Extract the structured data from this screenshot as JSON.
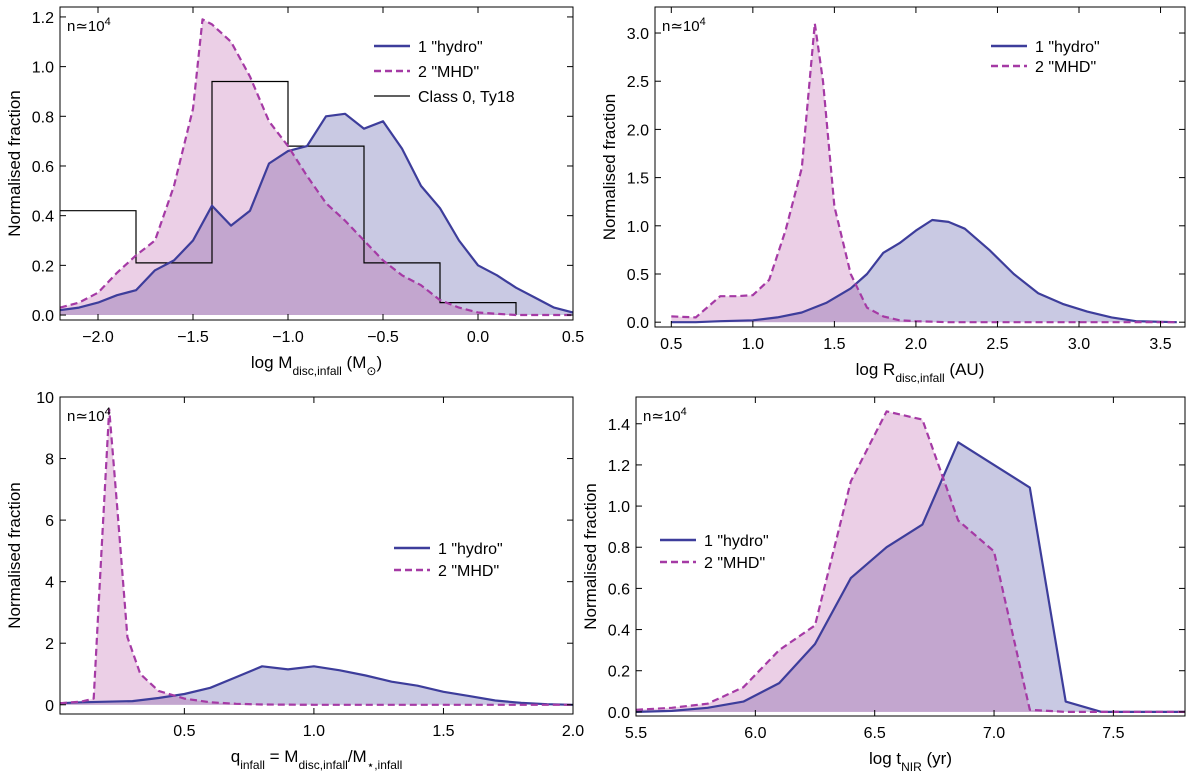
{
  "colors": {
    "hydro": "#3d3d9b",
    "mhd": "#a53aa5",
    "hydro_fill": "#c9c9e3",
    "mhd_fill": "#ebcfe6",
    "overlap_fill": "#c3a6cf",
    "hist": "#000000"
  },
  "chart_data": [
    {
      "type": "area",
      "ylabel": "Normalised fraction",
      "xlabel": "log M",
      "xlabel_sub": "disc,infall",
      "xlabel_rest": " (M",
      "xlabel_sub2": "⊙",
      "xlabel_end": ")",
      "annotation": "n≃10",
      "annotation_sup": "4",
      "xlim": [
        -2.2,
        0.5
      ],
      "ylim": [
        -0.02,
        1.24
      ],
      "xticks": [
        -2.0,
        -1.5,
        -1.0,
        -0.5,
        0.0,
        0.5
      ],
      "xtick_labels": [
        "−2.0",
        "−1.5",
        "−1.0",
        "−0.5",
        "0.0",
        "0.5"
      ],
      "yticks": [
        0.0,
        0.2,
        0.4,
        0.6,
        0.8,
        1.0,
        1.2
      ],
      "ytick_labels": [
        "0.0",
        "0.2",
        "0.4",
        "0.6",
        "0.8",
        "1.0",
        "1.2"
      ],
      "legend": [
        "1 \"hydro\"",
        "2 \"MHD\"",
        "Class 0, Ty18"
      ],
      "series": [
        {
          "name": "1 \"hydro\"",
          "style": "solid",
          "x": [
            -2.2,
            -2.1,
            -2.0,
            -1.9,
            -1.8,
            -1.7,
            -1.6,
            -1.5,
            -1.4,
            -1.3,
            -1.2,
            -1.1,
            -1.0,
            -0.9,
            -0.8,
            -0.7,
            -0.6,
            -0.5,
            -0.4,
            -0.3,
            -0.2,
            -0.1,
            0.0,
            0.1,
            0.2,
            0.3,
            0.4,
            0.5
          ],
          "y": [
            0.02,
            0.03,
            0.05,
            0.08,
            0.1,
            0.18,
            0.22,
            0.3,
            0.44,
            0.36,
            0.42,
            0.61,
            0.66,
            0.68,
            0.8,
            0.81,
            0.75,
            0.78,
            0.67,
            0.52,
            0.43,
            0.3,
            0.2,
            0.16,
            0.11,
            0.07,
            0.03,
            0.01
          ]
        },
        {
          "name": "2 \"MHD\"",
          "style": "dashed",
          "x": [
            -2.2,
            -2.1,
            -2.0,
            -1.9,
            -1.8,
            -1.7,
            -1.6,
            -1.5,
            -1.45,
            -1.4,
            -1.3,
            -1.2,
            -1.1,
            -1.0,
            -0.9,
            -0.8,
            -0.7,
            -0.6,
            -0.5,
            -0.4,
            -0.3,
            -0.2,
            -0.1,
            0.0,
            0.1,
            0.2,
            0.3,
            0.4,
            0.5
          ],
          "y": [
            0.03,
            0.05,
            0.09,
            0.17,
            0.24,
            0.3,
            0.52,
            0.83,
            1.19,
            1.17,
            1.1,
            0.96,
            0.78,
            0.68,
            0.56,
            0.45,
            0.38,
            0.3,
            0.22,
            0.16,
            0.12,
            0.06,
            0.03,
            0.01,
            0.005,
            0.0,
            0.0,
            0.0,
            0.0
          ]
        }
      ],
      "histogram": {
        "name": "Class 0, Ty18",
        "edges": [
          -2.2,
          -1.8,
          -1.4,
          -1.0,
          -0.6,
          -0.2,
          0.2
        ],
        "values": [
          0.42,
          0.21,
          0.94,
          0.68,
          0.21,
          0.05
        ]
      }
    },
    {
      "type": "area",
      "ylabel": "Normalised fraction",
      "xlabel": "log R",
      "xlabel_sub": "disc,infall",
      "xlabel_rest": " (AU)",
      "annotation": "n≃10",
      "annotation_sup": "4",
      "xlim": [
        0.4,
        3.65
      ],
      "ylim": [
        -0.05,
        3.27
      ],
      "xticks": [
        0.5,
        1.0,
        1.5,
        2.0,
        2.5,
        3.0,
        3.5
      ],
      "xtick_labels": [
        "0.5",
        "1.0",
        "1.5",
        "2.0",
        "2.5",
        "3.0",
        "3.5"
      ],
      "yticks": [
        0.0,
        0.5,
        1.0,
        1.5,
        2.0,
        2.5,
        3.0
      ],
      "ytick_labels": [
        "0.0",
        "0.5",
        "1.0",
        "1.5",
        "2.0",
        "2.5",
        "3.0"
      ],
      "legend": [
        "1 \"hydro\"",
        "2 \"MHD\""
      ],
      "series": [
        {
          "name": "1 \"hydro\"",
          "style": "solid",
          "x": [
            0.5,
            0.65,
            0.8,
            1.0,
            1.15,
            1.3,
            1.45,
            1.6,
            1.7,
            1.8,
            1.9,
            2.0,
            2.1,
            2.2,
            2.3,
            2.45,
            2.6,
            2.75,
            2.9,
            3.05,
            3.2,
            3.35,
            3.6
          ],
          "y": [
            0.0,
            0.0,
            0.01,
            0.02,
            0.05,
            0.1,
            0.2,
            0.35,
            0.5,
            0.72,
            0.82,
            0.95,
            1.06,
            1.04,
            0.97,
            0.75,
            0.5,
            0.3,
            0.19,
            0.11,
            0.05,
            0.01,
            0.0
          ]
        },
        {
          "name": "2 \"MHD\"",
          "style": "dashed",
          "x": [
            0.5,
            0.65,
            0.8,
            0.9,
            1.0,
            1.1,
            1.2,
            1.3,
            1.38,
            1.43,
            1.5,
            1.6,
            1.7,
            1.8,
            1.9,
            2.0,
            2.2,
            2.4,
            2.6,
            3.0,
            3.6
          ],
          "y": [
            0.06,
            0.05,
            0.27,
            0.27,
            0.28,
            0.44,
            0.95,
            1.6,
            3.1,
            2.5,
            1.2,
            0.5,
            0.15,
            0.06,
            0.02,
            0.01,
            0.0,
            0.0,
            0.0,
            0.0,
            0.0
          ]
        }
      ]
    },
    {
      "type": "area",
      "ylabel": "Normalised fraction",
      "xlabel": "q",
      "xlabel_sub": "infall",
      "xlabel_rest": " = M",
      "xlabel_sub2": "disc,infall",
      "xlabel_end": "/M",
      "xlabel_sub3": "⋆,infall",
      "annotation": "n≃10",
      "annotation_sup": "4",
      "xlim": [
        0.02,
        2.0
      ],
      "ylim": [
        -0.3,
        10.0
      ],
      "xticks": [
        0.5,
        1.0,
        1.5,
        2.0
      ],
      "xtick_labels": [
        "0.5",
        "1.0",
        "1.5",
        "2.0"
      ],
      "yticks": [
        0,
        2,
        4,
        6,
        8,
        10
      ],
      "ytick_labels": [
        "0",
        "2",
        "4",
        "6",
        "8",
        "10"
      ],
      "legend": [
        "1 \"hydro\"",
        "2 \"MHD\""
      ],
      "series": [
        {
          "name": "1 \"hydro\"",
          "style": "solid",
          "x": [
            0.02,
            0.1,
            0.2,
            0.3,
            0.4,
            0.5,
            0.6,
            0.7,
            0.8,
            0.9,
            1.0,
            1.1,
            1.2,
            1.3,
            1.4,
            1.5,
            1.6,
            1.7,
            1.8,
            1.9,
            2.0
          ],
          "y": [
            0.05,
            0.08,
            0.1,
            0.12,
            0.22,
            0.35,
            0.55,
            0.9,
            1.25,
            1.15,
            1.25,
            1.12,
            0.95,
            0.75,
            0.62,
            0.42,
            0.28,
            0.14,
            0.06,
            0.02,
            0.0
          ]
        },
        {
          "name": "2 \"MHD\"",
          "style": "dashed",
          "x": [
            0.02,
            0.1,
            0.15,
            0.18,
            0.21,
            0.24,
            0.28,
            0.33,
            0.4,
            0.5,
            0.6,
            0.7,
            0.8,
            1.0,
            1.5,
            2.0
          ],
          "y": [
            0.05,
            0.1,
            0.2,
            5.0,
            9.6,
            6.5,
            2.2,
            1.0,
            0.45,
            0.2,
            0.08,
            0.03,
            0.01,
            0.0,
            0.0,
            0.0
          ]
        }
      ]
    },
    {
      "type": "area",
      "ylabel": "Normalised fraction",
      "xlabel": "log t",
      "xlabel_sub": "NIR",
      "xlabel_rest": " (yr)",
      "annotation": "n≃10",
      "annotation_sup": "4",
      "xlim": [
        5.5,
        7.8
      ],
      "ylim": [
        -0.02,
        1.53
      ],
      "xticks": [
        5.5,
        6.0,
        6.5,
        7.0,
        7.5
      ],
      "xtick_labels": [
        "5.5",
        "6.0",
        "6.5",
        "7.0",
        "7.5"
      ],
      "yticks": [
        0.0,
        0.2,
        0.4,
        0.6,
        0.8,
        1.0,
        1.2,
        1.4
      ],
      "ytick_labels": [
        "0.0",
        "0.2",
        "0.4",
        "0.6",
        "0.8",
        "1.0",
        "1.2",
        "1.4"
      ],
      "legend": [
        "1 \"hydro\"",
        "2 \"MHD\""
      ],
      "series": [
        {
          "name": "1 \"hydro\"",
          "style": "solid",
          "x": [
            5.5,
            5.65,
            5.8,
            5.95,
            6.1,
            6.25,
            6.4,
            6.55,
            6.7,
            6.85,
            7.0,
            7.15,
            7.3,
            7.45,
            7.6,
            7.8
          ],
          "y": [
            0.0,
            0.005,
            0.02,
            0.05,
            0.14,
            0.33,
            0.65,
            0.8,
            0.91,
            1.31,
            1.2,
            1.09,
            0.05,
            0.0,
            0.0,
            0.0
          ]
        },
        {
          "name": "2 \"MHD\"",
          "style": "dashed",
          "x": [
            5.5,
            5.65,
            5.8,
            5.95,
            6.1,
            6.25,
            6.4,
            6.55,
            6.7,
            6.85,
            7.0,
            7.15,
            7.3,
            7.45,
            7.6,
            7.8
          ],
          "y": [
            0.01,
            0.02,
            0.04,
            0.12,
            0.3,
            0.42,
            1.12,
            1.46,
            1.42,
            0.93,
            0.78,
            0.01,
            0.0,
            0.0,
            0.0,
            0.0
          ]
        }
      ]
    }
  ]
}
